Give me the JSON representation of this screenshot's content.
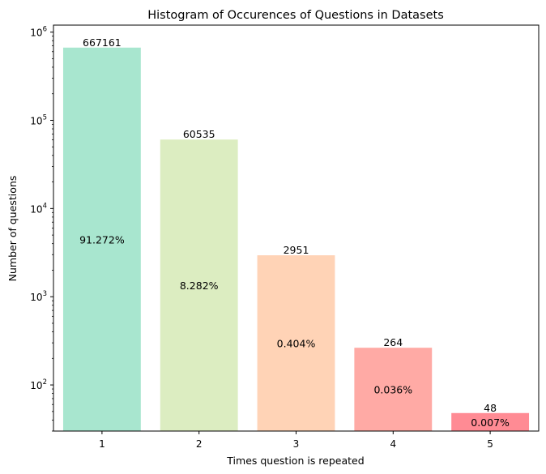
{
  "chart_data": {
    "type": "bar",
    "title": "Histogram of Occurences of Questions in Datasets",
    "xlabel": "Times question is repeated",
    "ylabel": "Number of questions",
    "yscale": "log",
    "ylim": [
      30,
      1200000
    ],
    "categories": [
      "1",
      "2",
      "3",
      "4",
      "5"
    ],
    "values": [
      667161,
      60535,
      2951,
      264,
      48
    ],
    "value_labels": [
      "667161",
      "60535",
      "2951",
      "264",
      "48"
    ],
    "percent_labels": [
      "91.272%",
      "8.282%",
      "0.404%",
      "0.036%",
      "0.007%"
    ],
    "colors": [
      "#a8e6cf",
      "#dcedc1",
      "#ffd3b6",
      "#ffaaa5",
      "#ff8b94"
    ],
    "y_major_ticks": [
      {
        "value": 100,
        "exp": "2"
      },
      {
        "value": 1000,
        "exp": "3"
      },
      {
        "value": 10000,
        "exp": "4"
      },
      {
        "value": 100000,
        "exp": "5"
      },
      {
        "value": 1000000,
        "exp": "6"
      }
    ],
    "y_tick_base": "10",
    "grid": false,
    "legend": "none"
  }
}
